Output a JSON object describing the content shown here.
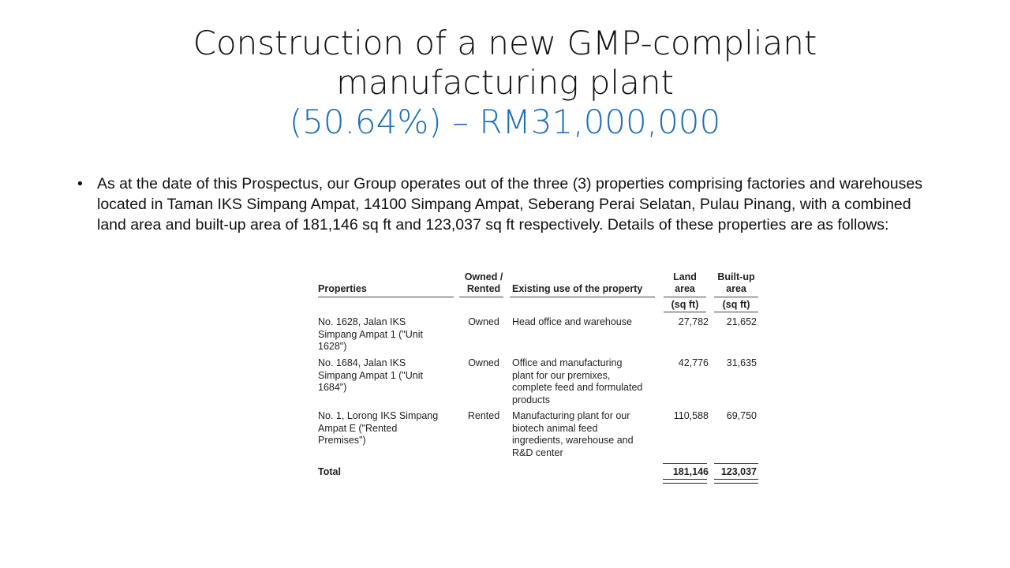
{
  "slide": {
    "title_line1": "Construction of a new GMP-compliant",
    "title_line2": "manufacturing plant",
    "title_line3": "(50.64%) – RM31,000,000",
    "accent_color": "#1f6fb8"
  },
  "bullet": {
    "symbol": "•",
    "text": "As at the date of this Prospectus, our Group operates out of the three (3) properties comprising factories and warehouses located in Taman IKS Simpang Ampat, 14100 Simpang Ampat, Seberang Perai Selatan, Pulau Pinang, with a combined land area and built-up area of 181,146 sq ft and 123,037 sq ft respectively. Details of these properties are as follows:"
  },
  "table": {
    "headers": {
      "properties": "Properties",
      "owned_line1": "Owned /",
      "owned_line2": "Rented",
      "use": "Existing use of the property",
      "land_line1": "Land",
      "land_line2": "area",
      "land_unit": "(sq ft)",
      "built_line1": "Built-up",
      "built_line2": "area",
      "built_unit": "(sq ft)"
    },
    "rows": [
      {
        "prop_lines": [
          "No. 1628, Jalan IKS",
          "Simpang Ampat 1 (\"Unit",
          "1628\")"
        ],
        "status": "Owned",
        "use_lines": [
          "Head office and warehouse"
        ],
        "land": "27,782",
        "built": "21,652"
      },
      {
        "prop_lines": [
          "No. 1684, Jalan IKS",
          "Simpang Ampat 1 (\"Unit",
          "1684\")"
        ],
        "status": "Owned",
        "use_lines": [
          "Office and manufacturing",
          "plant for our premixes,",
          "complete feed and formulated",
          "products"
        ],
        "land": "42,776",
        "built": "31,635"
      },
      {
        "prop_lines": [
          "No. 1, Lorong IKS Simpang",
          "Ampat E (\"Rented",
          "Premises\")"
        ],
        "status": "Rented",
        "use_lines": [
          "Manufacturing plant for our",
          "biotech animal feed",
          "ingredients, warehouse and",
          "R&D center"
        ],
        "land": "110,588",
        "built": "69,750"
      }
    ],
    "total": {
      "label": "Total",
      "land": "181,146",
      "built": "123,037"
    }
  }
}
